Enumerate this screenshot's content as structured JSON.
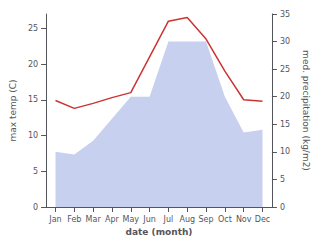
{
  "chart_data": {
    "type": "line",
    "xlabel": "date (month)",
    "ylabel": "max temp (C)",
    "y2label": "med. precipitation (kg/m2)",
    "categories": [
      "Jan",
      "Feb",
      "Mar",
      "Apr",
      "May",
      "Jun",
      "Jul",
      "Aug",
      "Sep",
      "Oct",
      "Nov",
      "Dec"
    ],
    "series": [
      {
        "type": "area",
        "axis": "y2",
        "color": "#c8d0f0",
        "values": [
          10.0,
          9.5,
          12.0,
          16.0,
          20.0,
          20.0,
          30.0,
          30.0,
          30.0,
          20.0,
          13.5,
          14.0
        ]
      },
      {
        "type": "line",
        "color": "#cc3333",
        "values": [
          14.9,
          13.8,
          14.5,
          15.3,
          16.0,
          21.0,
          26.0,
          26.5,
          23.5,
          19.0,
          15.0,
          14.8
        ]
      }
    ],
    "ylim": [
      0,
      27
    ],
    "yticks": [
      0,
      5,
      10,
      15,
      20,
      25
    ],
    "y2lim": [
      0,
      35
    ],
    "y2ticks": [
      0,
      5,
      10,
      15,
      20,
      25,
      30,
      35
    ],
    "grid": false
  }
}
